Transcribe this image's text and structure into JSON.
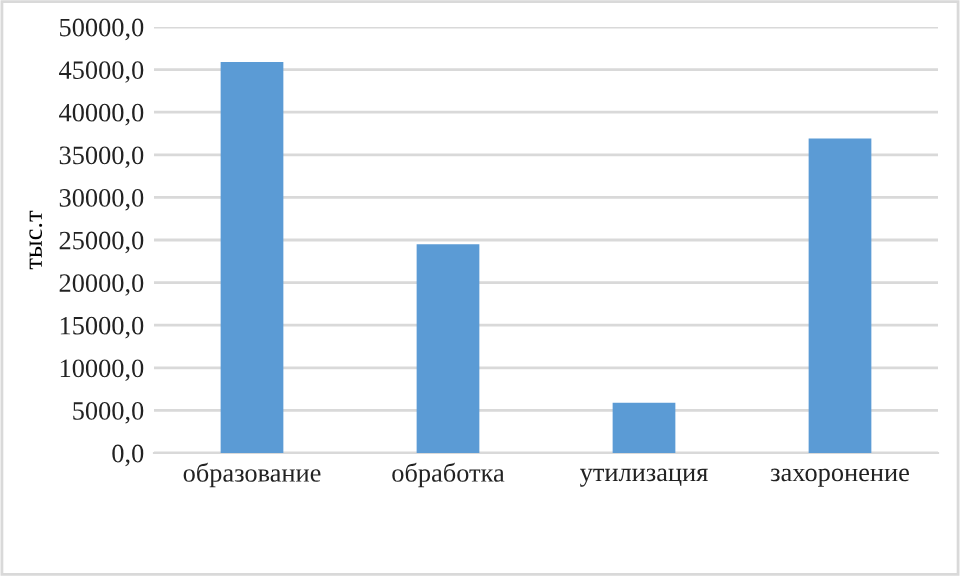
{
  "chart_data": {
    "type": "bar",
    "ylabel": "тыс.т",
    "categories": [
      "образование",
      "обработка",
      "утилизация",
      "захоронение"
    ],
    "values": [
      45900,
      24500,
      5900,
      36900
    ],
    "color": "#5b9bd5",
    "ylim": [
      0,
      50000
    ],
    "yticks": [
      {
        "value": 0,
        "label": "0,0"
      },
      {
        "value": 5000,
        "label": "5000,0"
      },
      {
        "value": 10000,
        "label": "10000,0"
      },
      {
        "value": 15000,
        "label": "15000,0"
      },
      {
        "value": 20000,
        "label": "20000,0"
      },
      {
        "value": 25000,
        "label": "25000,0"
      },
      {
        "value": 30000,
        "label": "30000,0"
      },
      {
        "value": 35000,
        "label": "35000,0"
      },
      {
        "value": 40000,
        "label": "40000,0"
      },
      {
        "value": 45000,
        "label": "45000,0"
      },
      {
        "value": 50000,
        "label": "50000,0"
      }
    ],
    "grid": "y"
  }
}
